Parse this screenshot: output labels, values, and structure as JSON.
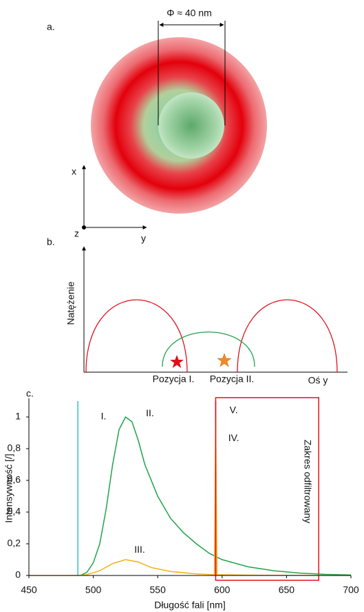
{
  "panel_a": {
    "label": "a.",
    "dimension": "Φ ≈ 40 nm",
    "axis_x": "x",
    "axis_y": "y",
    "axis_z": "z"
  },
  "panel_b": {
    "label": "b.",
    "y_label": "Natężenie",
    "position_1": "Pozycja I.",
    "position_2": "Pozycja II.",
    "x_label": "Oś y"
  },
  "chart_data": {
    "type": "line",
    "panel_label": "c.",
    "x_label": "Długość fali [nm]",
    "y_label": "Intensywność [/]",
    "xlim": [
      450,
      700
    ],
    "xticks": [
      450,
      500,
      550,
      600,
      650,
      700
    ],
    "ylim": [
      0,
      1.1
    ],
    "yticks": [
      0,
      {
        "value": 0.2,
        "label": "0,2"
      },
      {
        "value": 0.4,
        "label": "0,4"
      },
      {
        "value": 0.6,
        "label": "0,6"
      },
      {
        "value": 0.8,
        "label": "0,8"
      },
      1
    ],
    "series": [
      {
        "color": "#2ec4c4",
        "x": [
          488,
          488
        ],
        "values": [
          0,
          1.1
        ]
      },
      {
        "color": "#1fa34a",
        "x": [
          490,
          495,
          500,
          505,
          510,
          515,
          520,
          525,
          530,
          535,
          540,
          550,
          560,
          570,
          580,
          590,
          600,
          620,
          640,
          660,
          680,
          700
        ],
        "values": [
          0,
          0.02,
          0.08,
          0.2,
          0.42,
          0.7,
          0.92,
          1.0,
          0.97,
          0.85,
          0.7,
          0.5,
          0.36,
          0.27,
          0.2,
          0.14,
          0.1,
          0.055,
          0.03,
          0.015,
          0.007,
          0.003
        ]
      },
      {
        "color": "#f5b018",
        "x": [
          450,
          488,
          495,
          505,
          515,
          525,
          535,
          545,
          560,
          580,
          594,
          595,
          596,
          620,
          700
        ],
        "values": [
          0,
          0,
          0.005,
          0.03,
          0.075,
          0.1,
          0.085,
          0.05,
          0.025,
          0.01,
          0.005,
          1.0,
          0.005,
          0.002,
          0
        ]
      },
      {
        "color": "#e0101a",
        "x": [
          595,
          595
        ],
        "values": [
          0,
          1.1
        ]
      }
    ],
    "annotations": [
      {
        "text": "I.",
        "x": 508,
        "y": 1.0
      },
      {
        "text": "II.",
        "x": 544,
        "y": 1.02
      },
      {
        "text": "III.",
        "x": 536,
        "y": 0.16
      },
      {
        "text": "IV.",
        "x": 609,
        "y": 0.865
      },
      {
        "text": "V.",
        "x": 609,
        "y": 1.04
      }
    ],
    "filtered_range": {
      "label": "Zakres odfiltrowany",
      "xlim": [
        595,
        675
      ],
      "color": "#e0101a"
    }
  }
}
